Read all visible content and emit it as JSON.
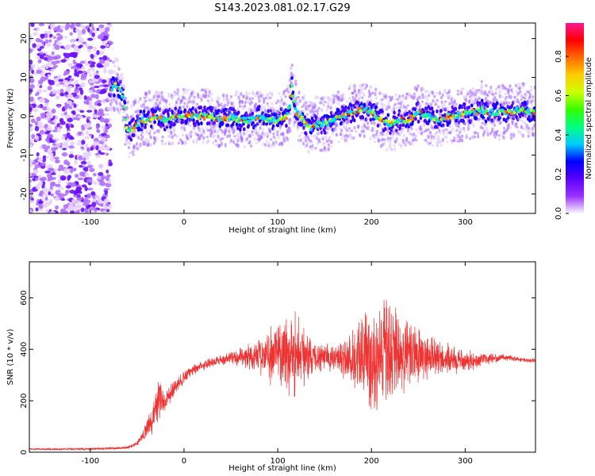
{
  "title": "S143.2023.081.02.17.G29",
  "chart_data": [
    {
      "type": "heatmap",
      "xlabel": "Height of straight line (km)",
      "ylabel": "Frequency (Hz)",
      "xlim": [
        -165,
        375
      ],
      "ylim": [
        -25,
        24
      ],
      "xticks": [
        -100,
        0,
        100,
        200,
        300
      ],
      "yticks": [
        -20,
        -10,
        0,
        10,
        20
      ],
      "colorbar": {
        "label": "Normalized spectral amplitude",
        "range": [
          0,
          0.97
        ],
        "ticks": [
          0.0,
          0.2,
          0.4,
          0.6,
          0.8
        ],
        "colormap": [
          "#f7f7ff",
          "#9b30ff",
          "#5a00ff",
          "#0000ff",
          "#00ccff",
          "#00ff80",
          "#33ff00",
          "#ccff00",
          "#ffcc00",
          "#ff6a00",
          "#ff0000",
          "#ff1493"
        ]
      },
      "ridge_frequency": {
        "x": [
          -78,
          -72,
          -68,
          -64,
          -62,
          -58,
          -54,
          -50,
          -46,
          -40,
          -30,
          -20,
          -10,
          0,
          10,
          20,
          30,
          40,
          50,
          60,
          70,
          80,
          90,
          100,
          110,
          113,
          115,
          117,
          120,
          125,
          130,
          135,
          140,
          150,
          160,
          170,
          180,
          190,
          200,
          210,
          220,
          230,
          240,
          250,
          260,
          270,
          280,
          290,
          300,
          310,
          318,
          320,
          330,
          340,
          350,
          360,
          370,
          375
        ],
        "y": [
          7,
          8,
          7,
          4,
          -2,
          -4,
          -3,
          -2,
          -1,
          -1,
          0,
          -1,
          0,
          0,
          0,
          0,
          0,
          -1,
          0,
          -1,
          -1,
          0,
          -1,
          -1,
          0,
          3,
          8,
          4,
          1,
          0,
          -2,
          -3,
          -2,
          -2,
          -1,
          0,
          1,
          2,
          1,
          -1,
          -2,
          -1,
          -1,
          1,
          0,
          -1,
          0,
          0,
          1,
          1,
          2,
          1,
          1,
          1,
          1,
          2,
          1,
          1
        ]
      },
      "noise_region_x": [
        -165,
        -78
      ]
    },
    {
      "type": "line",
      "xlabel": "Height of straight line (km)",
      "ylabel": "SNR (10 * v/v)",
      "xlim": [
        -165,
        375
      ],
      "ylim": [
        0,
        740
      ],
      "xticks": [
        -100,
        0,
        100,
        200,
        300
      ],
      "yticks": [
        0,
        200,
        400,
        600
      ],
      "color": "#ee3333",
      "envelope": {
        "x": [
          -165,
          -120,
          -80,
          -60,
          -50,
          -45,
          -40,
          -35,
          -30,
          -25,
          -20,
          -10,
          0,
          10,
          20,
          40,
          60,
          80,
          100,
          110,
          120,
          130,
          140,
          150,
          160,
          180,
          200,
          220,
          240,
          260,
          280,
          300,
          320,
          340,
          360,
          375
        ],
        "mean": [
          12,
          12,
          14,
          18,
          35,
          60,
          90,
          120,
          180,
          200,
          200,
          250,
          290,
          320,
          340,
          360,
          370,
          375,
          385,
          390,
          380,
          375,
          370,
          372,
          365,
          370,
          375,
          380,
          375,
          370,
          360,
          355,
          360,
          370,
          360,
          355
        ],
        "amplitude": [
          4,
          4,
          6,
          6,
          10,
          20,
          40,
          60,
          100,
          80,
          40,
          40,
          30,
          25,
          25,
          25,
          40,
          80,
          150,
          200,
          200,
          110,
          70,
          60,
          60,
          140,
          250,
          250,
          160,
          100,
          70,
          50,
          25,
          15,
          10,
          10
        ]
      }
    }
  ]
}
